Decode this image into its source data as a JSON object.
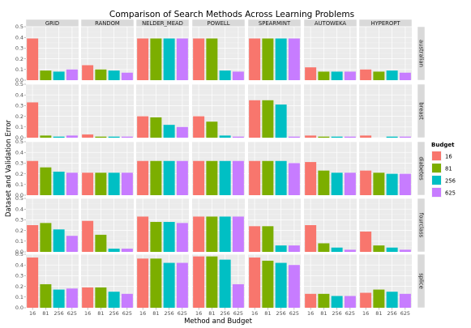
{
  "chart_data": {
    "type": "bar",
    "title": "Comparison of Search Methods Across Learning Problems",
    "xlabel": "Method and Budget",
    "ylabel": "Dataset and Validation Error",
    "ylim": [
      0,
      0.5
    ],
    "y_ticks": [
      "0.0",
      "0.1",
      "0.2",
      "0.3",
      "0.4",
      "0.5"
    ],
    "methods": [
      "GRID",
      "RANDOM",
      "NELDER_MEAD",
      "POWELL",
      "SPEARMINT",
      "AUTOWEKA",
      "HYPEROPT"
    ],
    "datasets": [
      "australian",
      "breast",
      "diabetes",
      "fourclass",
      "splice"
    ],
    "budgets": [
      "16",
      "81",
      "256",
      "625"
    ],
    "legend": {
      "title": "Budget",
      "placement": "right",
      "entries": [
        {
          "label": "16",
          "color": "#F8766D"
        },
        {
          "label": "81",
          "color": "#7CAE00"
        },
        {
          "label": "256",
          "color": "#00BFC4"
        },
        {
          "label": "625",
          "color": "#C77CFF"
        }
      ]
    },
    "grid": true,
    "panel_background": "#ebebeb",
    "values": {
      "australian": {
        "GRID": [
          0.39,
          0.09,
          0.08,
          0.1
        ],
        "RANDOM": [
          0.14,
          0.1,
          0.09,
          0.07
        ],
        "NELDER_MEAD": [
          0.39,
          0.39,
          0.39,
          0.39
        ],
        "POWELL": [
          0.39,
          0.39,
          0.09,
          0.08
        ],
        "SPEARMINT": [
          0.39,
          0.39,
          0.39,
          0.39
        ],
        "AUTOWEKA": [
          0.12,
          0.08,
          0.08,
          0.08
        ],
        "HYPEROPT": [
          0.1,
          0.08,
          0.09,
          0.07
        ]
      },
      "breast": {
        "GRID": [
          0.33,
          0.02,
          0.01,
          0.02
        ],
        "RANDOM": [
          0.03,
          0.01,
          0.01,
          0.01
        ],
        "NELDER_MEAD": [
          0.2,
          0.19,
          0.12,
          0.1
        ],
        "POWELL": [
          0.2,
          0.15,
          0.02,
          0.01
        ],
        "SPEARMINT": [
          0.35,
          0.35,
          0.31,
          0.01
        ],
        "AUTOWEKA": [
          0.02,
          0.01,
          0.01,
          0.01
        ],
        "HYPEROPT": [
          0.02,
          0.0,
          0.01,
          0.01
        ]
      },
      "diabetes": {
        "GRID": [
          0.32,
          0.26,
          0.22,
          0.21
        ],
        "RANDOM": [
          0.21,
          0.21,
          0.21,
          0.21
        ],
        "NELDER_MEAD": [
          0.32,
          0.32,
          0.32,
          0.32
        ],
        "POWELL": [
          0.32,
          0.32,
          0.32,
          0.32
        ],
        "SPEARMINT": [
          0.32,
          0.32,
          0.32,
          0.3
        ],
        "AUTOWEKA": [
          0.31,
          0.23,
          0.21,
          0.21
        ],
        "HYPEROPT": [
          0.23,
          0.21,
          0.2,
          0.2
        ]
      },
      "fourclass": {
        "GRID": [
          0.25,
          0.27,
          0.21,
          0.15
        ],
        "RANDOM": [
          0.29,
          0.16,
          0.03,
          0.03
        ],
        "NELDER_MEAD": [
          0.33,
          0.28,
          0.28,
          0.27
        ],
        "POWELL": [
          0.33,
          0.33,
          0.33,
          0.33
        ],
        "SPEARMINT": [
          0.24,
          0.24,
          0.06,
          0.06
        ],
        "AUTOWEKA": [
          0.25,
          0.08,
          0.04,
          0.02
        ],
        "HYPEROPT": [
          0.19,
          0.06,
          0.04,
          0.02
        ]
      },
      "splice": {
        "GRID": [
          0.47,
          0.22,
          0.17,
          0.18
        ],
        "RANDOM": [
          0.19,
          0.19,
          0.15,
          0.13
        ],
        "NELDER_MEAD": [
          0.46,
          0.46,
          0.42,
          0.42
        ],
        "POWELL": [
          0.48,
          0.48,
          0.45,
          0.22
        ],
        "SPEARMINT": [
          0.47,
          0.44,
          0.42,
          0.4
        ],
        "AUTOWEKA": [
          0.13,
          0.13,
          0.11,
          0.11
        ],
        "HYPEROPT": [
          0.14,
          0.17,
          0.15,
          0.13
        ]
      }
    }
  }
}
